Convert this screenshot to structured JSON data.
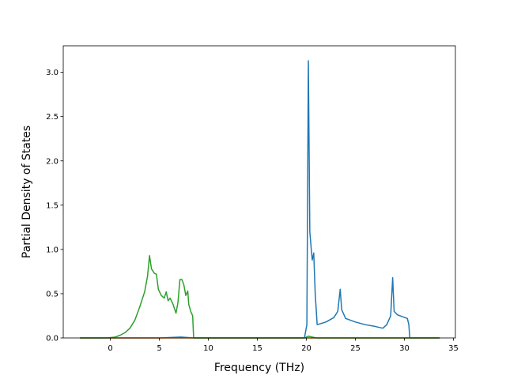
{
  "chart_data": {
    "type": "line",
    "title": "",
    "xlabel": "Frequency (THz)",
    "ylabel": "Partial Density of States",
    "xlim": [
      -4.8,
      35.2
    ],
    "ylim": [
      0,
      3.3
    ],
    "x_ticks": [
      0,
      5,
      10,
      15,
      20,
      25,
      30,
      35
    ],
    "y_ticks": [
      0.0,
      0.5,
      1.0,
      1.5,
      2.0,
      2.5,
      3.0
    ],
    "x_tick_labels": [
      "0",
      "5",
      "10",
      "15",
      "20",
      "25",
      "30",
      "35"
    ],
    "y_tick_labels": [
      "0.0",
      "0.5",
      "1.0",
      "1.5",
      "2.0",
      "2.5",
      "3.0"
    ],
    "grid": false,
    "legend": false,
    "series": [
      {
        "color": "#1f77b4",
        "points": [
          [
            -3.1,
            0
          ],
          [
            5,
            0
          ],
          [
            7.2,
            0.01
          ],
          [
            8.5,
            0
          ],
          [
            19.8,
            0
          ],
          [
            20.05,
            0.15
          ],
          [
            20.2,
            3.13
          ],
          [
            20.35,
            1.2
          ],
          [
            20.5,
            1.0
          ],
          [
            20.6,
            0.88
          ],
          [
            20.75,
            0.96
          ],
          [
            20.9,
            0.5
          ],
          [
            21.1,
            0.15
          ],
          [
            22,
            0.18
          ],
          [
            22.8,
            0.23
          ],
          [
            23.2,
            0.3
          ],
          [
            23.45,
            0.55
          ],
          [
            23.6,
            0.32
          ],
          [
            24,
            0.22
          ],
          [
            25,
            0.18
          ],
          [
            26,
            0.15
          ],
          [
            27,
            0.13
          ],
          [
            27.8,
            0.11
          ],
          [
            28.2,
            0.15
          ],
          [
            28.6,
            0.25
          ],
          [
            28.8,
            0.68
          ],
          [
            28.95,
            0.3
          ],
          [
            29.3,
            0.26
          ],
          [
            29.8,
            0.24
          ],
          [
            30.3,
            0.22
          ],
          [
            30.45,
            0.15
          ],
          [
            30.55,
            0
          ],
          [
            33.6,
            0
          ]
        ]
      },
      {
        "color": "#ff7f0e",
        "points": [
          [
            -3.1,
            0
          ],
          [
            33.6,
            0
          ]
        ]
      },
      {
        "color": "#2ca02c",
        "points": [
          [
            -3.1,
            0
          ],
          [
            -0.3,
            0
          ],
          [
            0.5,
            0.01
          ],
          [
            1.0,
            0.03
          ],
          [
            1.5,
            0.06
          ],
          [
            2.0,
            0.11
          ],
          [
            2.5,
            0.2
          ],
          [
            3.0,
            0.35
          ],
          [
            3.5,
            0.52
          ],
          [
            3.8,
            0.7
          ],
          [
            4.0,
            0.93
          ],
          [
            4.2,
            0.78
          ],
          [
            4.5,
            0.73
          ],
          [
            4.7,
            0.72
          ],
          [
            4.9,
            0.55
          ],
          [
            5.2,
            0.48
          ],
          [
            5.5,
            0.45
          ],
          [
            5.7,
            0.52
          ],
          [
            5.9,
            0.42
          ],
          [
            6.1,
            0.45
          ],
          [
            6.4,
            0.38
          ],
          [
            6.7,
            0.28
          ],
          [
            6.9,
            0.4
          ],
          [
            7.1,
            0.66
          ],
          [
            7.3,
            0.66
          ],
          [
            7.5,
            0.6
          ],
          [
            7.7,
            0.48
          ],
          [
            7.9,
            0.53
          ],
          [
            8.0,
            0.38
          ],
          [
            8.2,
            0.3
          ],
          [
            8.4,
            0.25
          ],
          [
            8.5,
            0
          ],
          [
            9.5,
            0
          ],
          [
            19.8,
            0
          ],
          [
            20.2,
            0.02
          ],
          [
            20.6,
            0.01
          ],
          [
            21.0,
            0
          ],
          [
            33.6,
            0
          ]
        ]
      }
    ]
  }
}
